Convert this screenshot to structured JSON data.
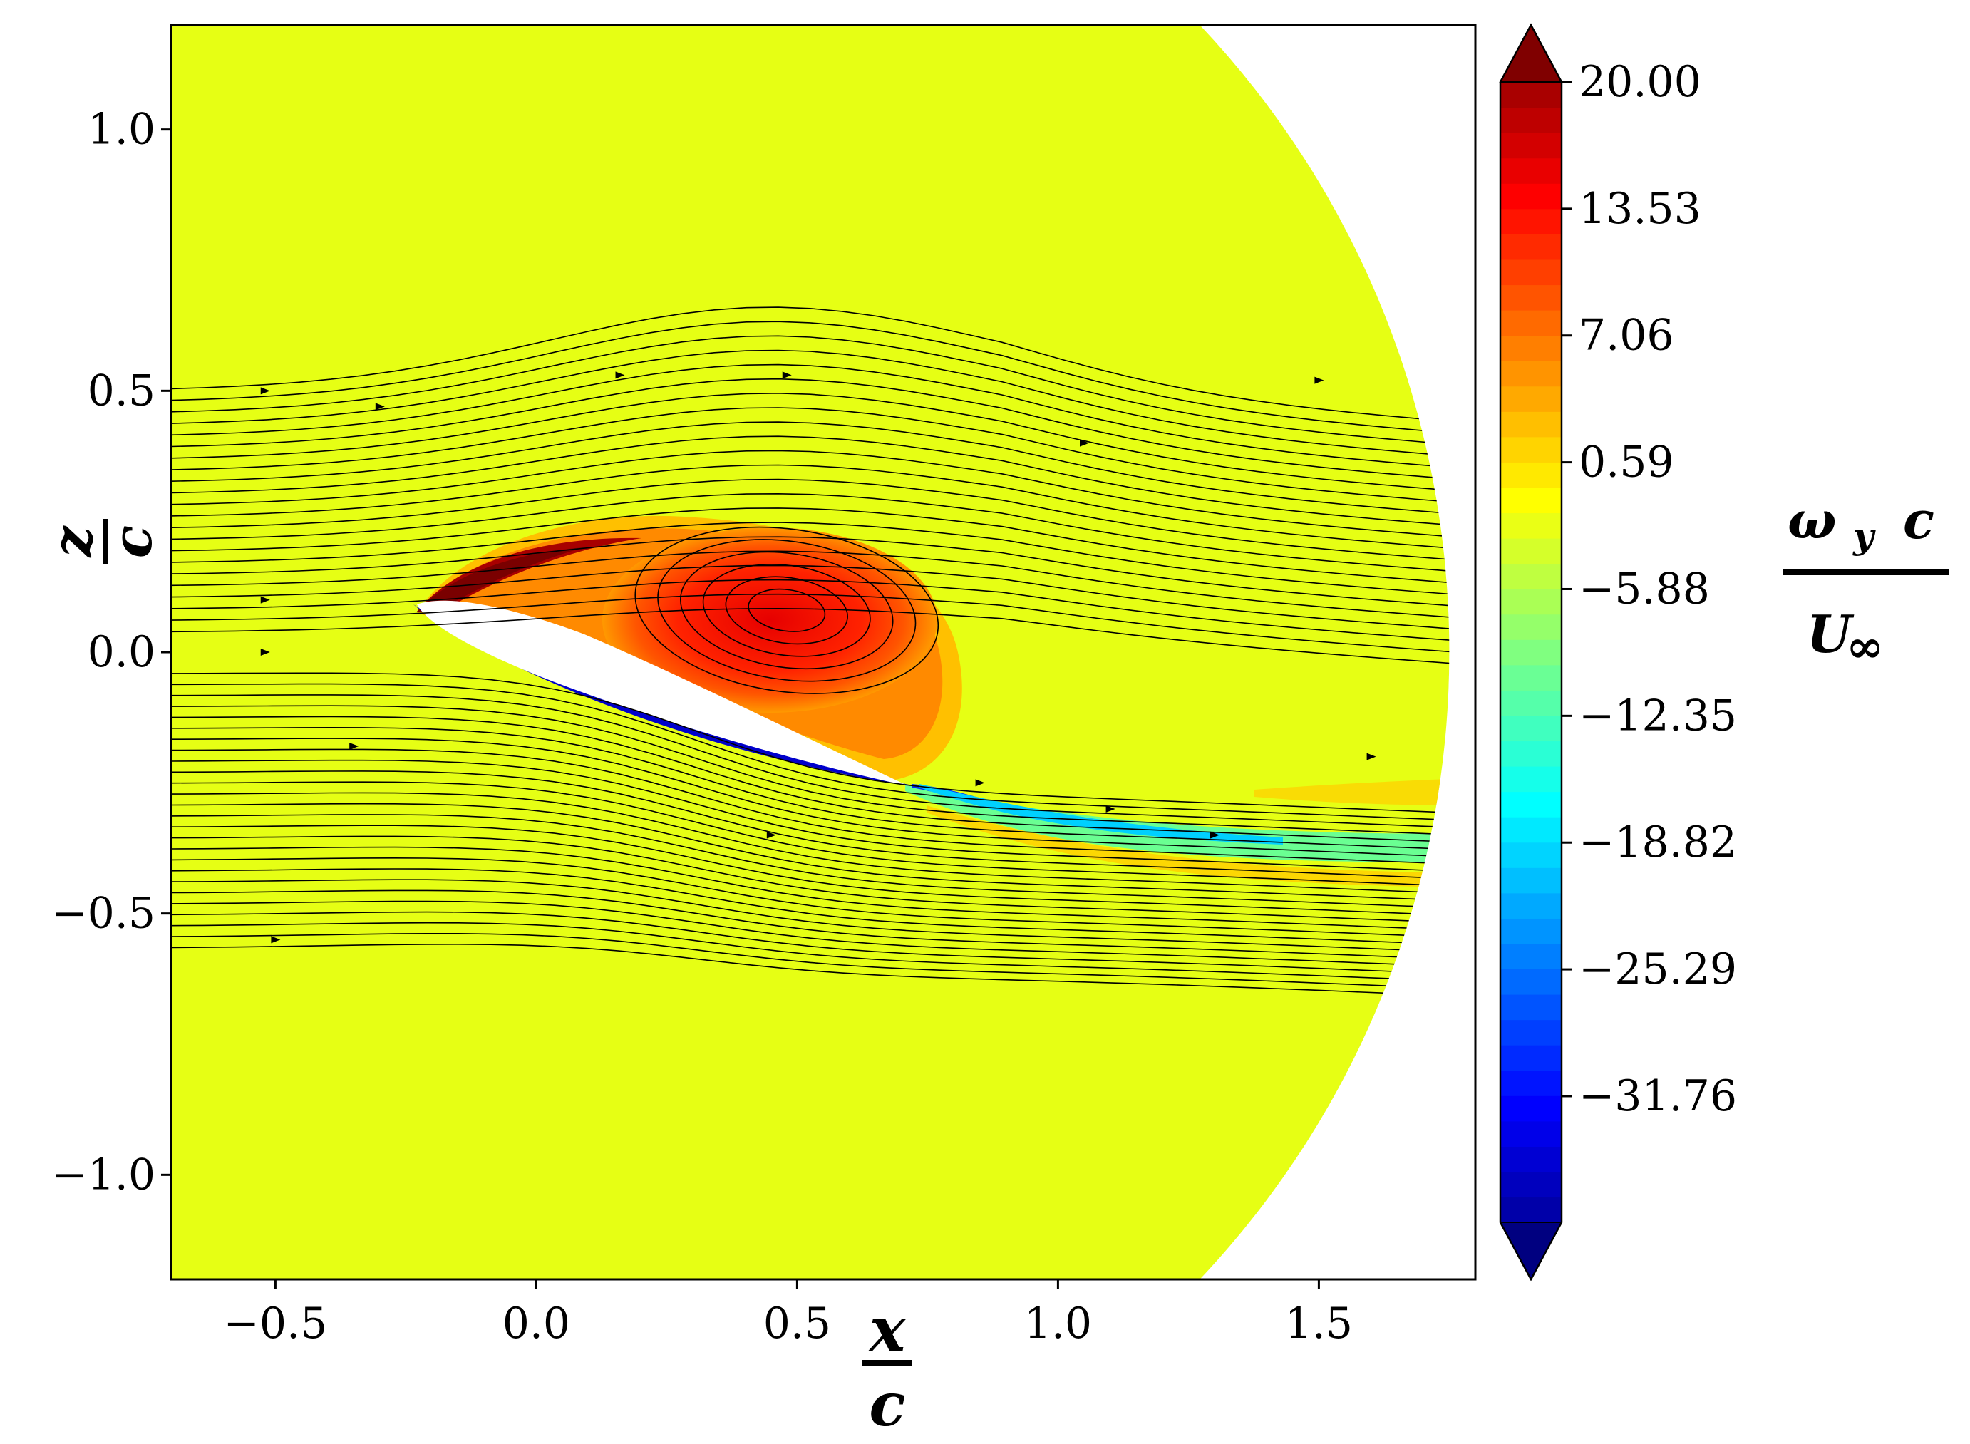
{
  "chart_data": {
    "type": "contour",
    "x_axis": {
      "label_num": "x",
      "label_den": "c",
      "ticks": [
        "−0.5",
        "0.0",
        "0.5",
        "1.0",
        "1.5"
      ],
      "tick_values": [
        -0.5,
        0.0,
        0.5,
        1.0,
        1.5
      ],
      "range": [
        -0.7,
        1.8
      ]
    },
    "y_axis": {
      "label_num": "z",
      "label_den": "c",
      "ticks": [
        "1.0",
        "0.5",
        "0.0",
        "−0.5",
        "−1.0"
      ],
      "tick_values": [
        1.0,
        0.5,
        0.0,
        -0.5,
        -1.0
      ],
      "range": [
        -1.2,
        1.2
      ]
    },
    "colorbar": {
      "label_num": "ω y c",
      "label_num_parts": [
        "ω",
        "y",
        "c"
      ],
      "label_den": "U∞",
      "label_den_parts": [
        "U",
        "∞"
      ],
      "ticks": [
        "20.00",
        "13.53",
        "7.06",
        "0.59",
        "−5.88",
        "−12.35",
        "−18.82",
        "−25.29",
        "−31.76"
      ],
      "tick_values": [
        20.0,
        13.53,
        7.06,
        0.59,
        -5.88,
        -12.35,
        -18.82,
        -25.29,
        -31.76
      ],
      "range": [
        -38.2,
        20.0
      ],
      "extend": "both",
      "colormap": "jet",
      "levels": 45
    },
    "airfoil": {
      "leading_edge": [
        -0.23,
        0.09
      ],
      "trailing_edge": [
        0.72,
        -0.26
      ]
    },
    "domain_boundary": "circular arc on right side",
    "background_value": 0.59,
    "grid": false
  },
  "colors": {
    "background_field": "#e6ff14",
    "positive_vortex": "#ff2a00",
    "negative_wake": "#00b8ff",
    "streamline": "#000000"
  }
}
